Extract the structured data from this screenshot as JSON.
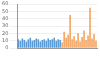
{
  "chart_data": {
    "type": "bar",
    "categories": [
      null,
      null,
      null,
      null,
      null,
      null,
      null,
      null,
      null,
      null,
      null,
      null,
      null,
      null,
      null,
      null,
      null,
      null,
      null,
      null,
      null,
      null,
      null,
      null,
      null,
      null,
      null,
      null,
      null,
      null,
      null,
      null,
      null,
      null,
      null,
      null,
      null,
      null,
      null,
      null
    ],
    "series": [
      {
        "color": "#5b9bd5",
        "values": [
          12,
          10,
          13,
          11,
          9,
          12,
          14,
          10,
          11,
          13,
          12,
          9,
          11,
          12,
          10,
          13,
          11,
          12,
          14,
          10,
          12,
          11,
          null,
          null,
          null,
          null,
          null,
          null,
          null,
          null,
          null,
          null,
          null,
          null,
          null,
          null,
          null,
          null,
          null,
          null
        ]
      },
      {
        "color": "#f4a460",
        "values": [
          null,
          null,
          null,
          null,
          null,
          null,
          null,
          null,
          null,
          null,
          null,
          null,
          null,
          null,
          null,
          null,
          null,
          null,
          null,
          null,
          null,
          null,
          8,
          22,
          14,
          18,
          45,
          12,
          16,
          10,
          20,
          9,
          15,
          24,
          11,
          17,
          55,
          13,
          19,
          10
        ]
      }
    ],
    "ylim": [
      0,
      60
    ],
    "yticks": [
      0,
      10,
      20,
      30,
      40,
      50,
      60
    ],
    "grid": true,
    "tick_labels": "y"
  }
}
